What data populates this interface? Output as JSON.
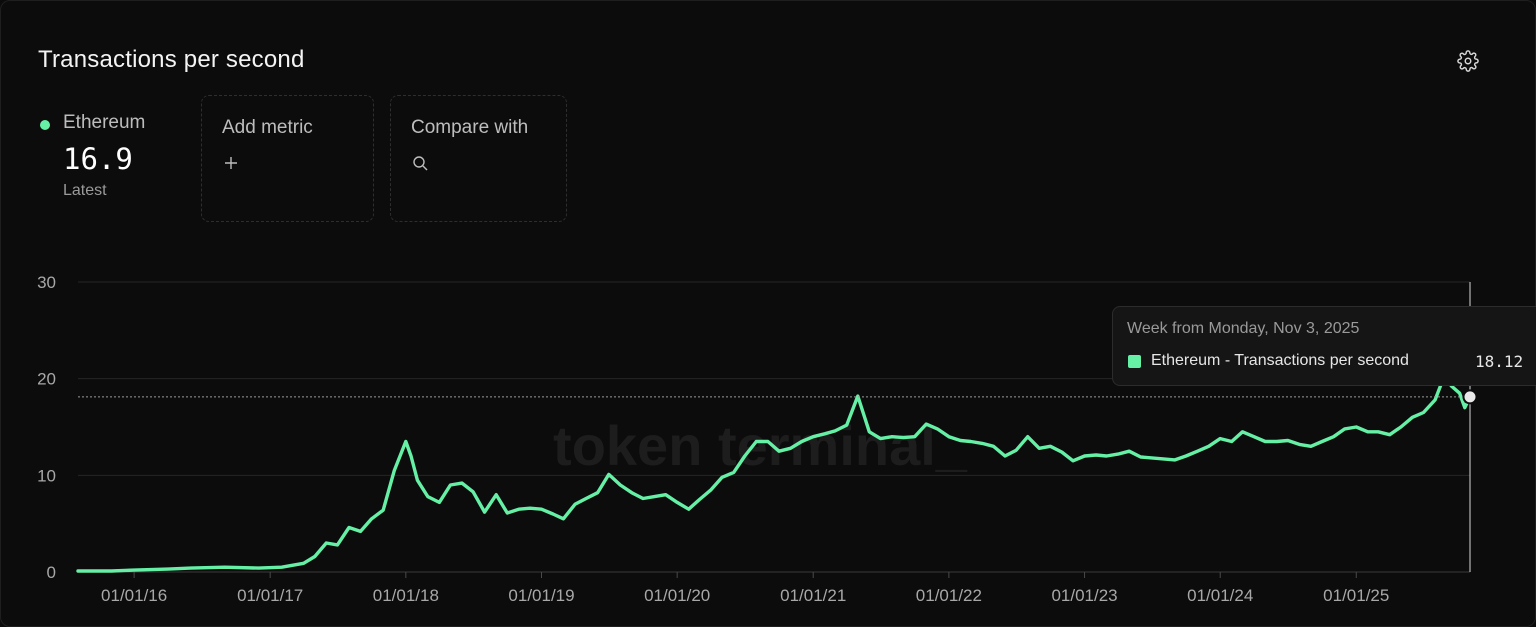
{
  "header": {
    "title": "Transactions per second",
    "settings_icon": "gear-icon"
  },
  "metric": {
    "name": "Ethereum",
    "value": "16.9",
    "sub": "Latest",
    "color": "#65f0a6"
  },
  "add_metric": {
    "label": "Add metric",
    "icon": "plus-icon"
  },
  "compare": {
    "label": "Compare with",
    "icon": "search-icon"
  },
  "watermark": "token terminal_",
  "tooltip": {
    "week": "Week from Monday, Nov 3, 2025",
    "series": "Ethereum - Transactions per second",
    "value": "18.12"
  },
  "chart_data": {
    "type": "line",
    "title": "Transactions per second",
    "xlabel": "",
    "ylabel": "",
    "ylim": [
      0,
      30
    ],
    "yticks": [
      "0",
      "10",
      "20",
      "30"
    ],
    "xticks": [
      {
        "date": "2016-01-01",
        "label": "01/01/16"
      },
      {
        "date": "2017-01-01",
        "label": "01/01/17"
      },
      {
        "date": "2018-01-01",
        "label": "01/01/18"
      },
      {
        "date": "2019-01-01",
        "label": "01/01/19"
      },
      {
        "date": "2020-01-01",
        "label": "01/01/20"
      },
      {
        "date": "2021-01-01",
        "label": "01/01/21"
      },
      {
        "date": "2022-01-01",
        "label": "01/01/22"
      },
      {
        "date": "2023-01-01",
        "label": "01/01/23"
      },
      {
        "date": "2024-01-01",
        "label": "01/01/24"
      },
      {
        "date": "2025-01-01",
        "label": "01/01/25"
      }
    ],
    "xlim": [
      "2015-08-03",
      "2025-11-03"
    ],
    "grid": true,
    "highlight": {
      "date": "2025-11-03",
      "value": 18.12
    },
    "series": [
      {
        "name": "Ethereum",
        "color": "#65f0a6",
        "points": [
          [
            "2015-08-03",
            0.1
          ],
          [
            "2015-11-01",
            0.1
          ],
          [
            "2016-01-01",
            0.2
          ],
          [
            "2016-04-01",
            0.3
          ],
          [
            "2016-06-01",
            0.4
          ],
          [
            "2016-09-01",
            0.5
          ],
          [
            "2016-12-01",
            0.4
          ],
          [
            "2017-02-01",
            0.5
          ],
          [
            "2017-04-01",
            0.9
          ],
          [
            "2017-05-01",
            1.6
          ],
          [
            "2017-06-01",
            3.0
          ],
          [
            "2017-07-01",
            2.8
          ],
          [
            "2017-08-01",
            4.6
          ],
          [
            "2017-09-01",
            4.2
          ],
          [
            "2017-10-01",
            5.5
          ],
          [
            "2017-11-01",
            6.4
          ],
          [
            "2017-12-01",
            10.5
          ],
          [
            "2018-01-01",
            13.5
          ],
          [
            "2018-01-15",
            12.0
          ],
          [
            "2018-02-01",
            9.5
          ],
          [
            "2018-03-01",
            7.8
          ],
          [
            "2018-04-01",
            7.2
          ],
          [
            "2018-05-01",
            9.0
          ],
          [
            "2018-06-01",
            9.2
          ],
          [
            "2018-07-01",
            8.3
          ],
          [
            "2018-08-01",
            6.2
          ],
          [
            "2018-09-01",
            8.0
          ],
          [
            "2018-10-01",
            6.1
          ],
          [
            "2018-11-01",
            6.5
          ],
          [
            "2018-12-01",
            6.6
          ],
          [
            "2019-01-01",
            6.5
          ],
          [
            "2019-02-01",
            6.0
          ],
          [
            "2019-03-01",
            5.5
          ],
          [
            "2019-04-01",
            7.0
          ],
          [
            "2019-05-01",
            7.6
          ],
          [
            "2019-06-01",
            8.2
          ],
          [
            "2019-07-01",
            10.1
          ],
          [
            "2019-08-01",
            9.0
          ],
          [
            "2019-09-01",
            8.2
          ],
          [
            "2019-10-01",
            7.6
          ],
          [
            "2019-11-01",
            7.8
          ],
          [
            "2019-12-01",
            8.0
          ],
          [
            "2020-01-01",
            7.2
          ],
          [
            "2020-02-01",
            6.5
          ],
          [
            "2020-03-01",
            7.5
          ],
          [
            "2020-04-01",
            8.5
          ],
          [
            "2020-05-01",
            9.8
          ],
          [
            "2020-06-01",
            10.3
          ],
          [
            "2020-07-01",
            12.0
          ],
          [
            "2020-08-01",
            13.5
          ],
          [
            "2020-09-01",
            13.5
          ],
          [
            "2020-10-01",
            12.5
          ],
          [
            "2020-11-01",
            12.8
          ],
          [
            "2020-12-01",
            13.5
          ],
          [
            "2021-01-01",
            14.0
          ],
          [
            "2021-02-01",
            14.3
          ],
          [
            "2021-03-01",
            14.6
          ],
          [
            "2021-04-01",
            15.2
          ],
          [
            "2021-05-01",
            18.2
          ],
          [
            "2021-06-01",
            14.5
          ],
          [
            "2021-07-01",
            13.8
          ],
          [
            "2021-08-01",
            14.0
          ],
          [
            "2021-09-01",
            13.9
          ],
          [
            "2021-10-01",
            14.0
          ],
          [
            "2021-11-01",
            15.3
          ],
          [
            "2021-12-01",
            14.8
          ],
          [
            "2022-01-01",
            14.0
          ],
          [
            "2022-02-01",
            13.6
          ],
          [
            "2022-03-01",
            13.5
          ],
          [
            "2022-04-01",
            13.3
          ],
          [
            "2022-05-01",
            13.0
          ],
          [
            "2022-06-01",
            12.0
          ],
          [
            "2022-07-01",
            12.6
          ],
          [
            "2022-08-01",
            14.0
          ],
          [
            "2022-09-01",
            12.8
          ],
          [
            "2022-10-01",
            13.0
          ],
          [
            "2022-11-01",
            12.4
          ],
          [
            "2022-12-01",
            11.5
          ],
          [
            "2023-01-01",
            12.0
          ],
          [
            "2023-02-01",
            12.1
          ],
          [
            "2023-03-01",
            12.0
          ],
          [
            "2023-04-01",
            12.2
          ],
          [
            "2023-05-01",
            12.5
          ],
          [
            "2023-06-01",
            11.9
          ],
          [
            "2023-07-01",
            11.8
          ],
          [
            "2023-08-01",
            11.7
          ],
          [
            "2023-09-01",
            11.6
          ],
          [
            "2023-10-01",
            12.0
          ],
          [
            "2023-11-01",
            12.5
          ],
          [
            "2023-12-01",
            13.0
          ],
          [
            "2024-01-01",
            13.8
          ],
          [
            "2024-02-01",
            13.5
          ],
          [
            "2024-03-01",
            14.5
          ],
          [
            "2024-04-01",
            14.0
          ],
          [
            "2024-05-01",
            13.5
          ],
          [
            "2024-06-01",
            13.5
          ],
          [
            "2024-07-01",
            13.6
          ],
          [
            "2024-08-01",
            13.2
          ],
          [
            "2024-09-01",
            13.0
          ],
          [
            "2024-10-01",
            13.5
          ],
          [
            "2024-11-01",
            14.0
          ],
          [
            "2024-12-01",
            14.8
          ],
          [
            "2025-01-01",
            15.0
          ],
          [
            "2025-02-01",
            14.5
          ],
          [
            "2025-03-01",
            14.5
          ],
          [
            "2025-04-01",
            14.2
          ],
          [
            "2025-05-01",
            15.0
          ],
          [
            "2025-06-01",
            16.0
          ],
          [
            "2025-07-01",
            16.5
          ],
          [
            "2025-08-01",
            17.8
          ],
          [
            "2025-08-25",
            20.2
          ],
          [
            "2025-09-15",
            19.2
          ],
          [
            "2025-10-06",
            18.5
          ],
          [
            "2025-10-20",
            17.0
          ],
          [
            "2025-11-03",
            18.12
          ]
        ]
      }
    ]
  }
}
